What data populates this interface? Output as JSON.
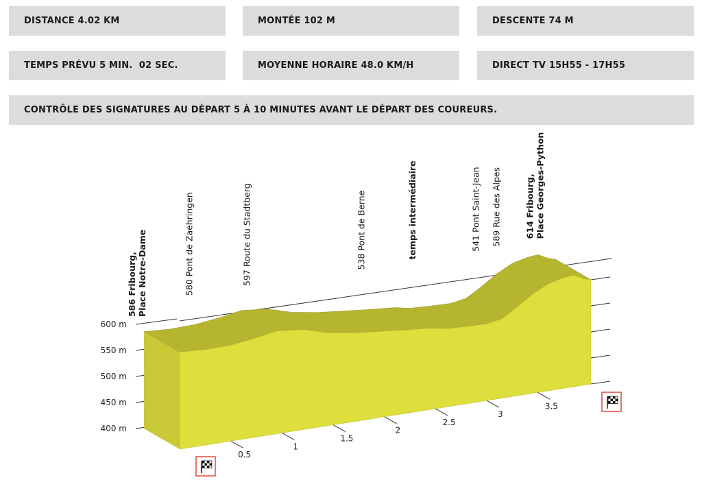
{
  "stats": {
    "distance": "DISTANCE 4.02 KM",
    "climb": "MONTÉE 102 M",
    "descent": "DESCENTE 74 M",
    "time": "TEMPS PRÉVU 5 MIN.  02 SEC.",
    "avg_speed": "MOYENNE HORAIRE 48.0 KM/H",
    "tv": "DIRECT TV 15H55 - 17H55",
    "note": "CONTRÔLE DES SIGNATURES AU DÉPART 5 À 10 MINUTES AVANT LE DÉPART DES COUREURS."
  },
  "colors": {
    "profile_top": "#b5b530",
    "profile_front": "#dede3c",
    "flag_border": "#e0493a",
    "box_bg": "#dcdcdc"
  },
  "chart_data": {
    "type": "area",
    "x_unit": "km",
    "y_unit": "m",
    "ylim": [
      400,
      600
    ],
    "y_ticks": [
      {
        "value": 400,
        "label": "400 m"
      },
      {
        "value": 450,
        "label": "450 m"
      },
      {
        "value": 500,
        "label": "500 m"
      },
      {
        "value": 550,
        "label": "550 m"
      },
      {
        "value": 600,
        "label": "600 m"
      }
    ],
    "x_ticks": [
      {
        "value": 0.5,
        "label": "0.5"
      },
      {
        "value": 1.0,
        "label": "1"
      },
      {
        "value": 1.5,
        "label": "1.5"
      },
      {
        "value": 2.0,
        "label": "2"
      },
      {
        "value": 2.5,
        "label": "2.5"
      },
      {
        "value": 3.0,
        "label": "3"
      },
      {
        "value": 3.5,
        "label": "3.5"
      }
    ],
    "total_distance": 4.02,
    "profile": {
      "x": [
        0,
        0.25,
        0.5,
        0.75,
        0.95,
        1.2,
        1.45,
        1.7,
        1.95,
        2.2,
        2.45,
        2.6,
        2.8,
        3.0,
        3.15,
        3.3,
        3.45,
        3.6,
        3.75,
        3.85,
        3.95,
        4.02
      ],
      "y": [
        586,
        583,
        584,
        590,
        597,
        592,
        578,
        570,
        565,
        560,
        556,
        550,
        548,
        547,
        552,
        570,
        590,
        605,
        612,
        614,
        604,
        600
      ]
    },
    "waypoints": [
      {
        "x": 0.0,
        "elevation": 586,
        "lines": [
          "586 Fribourg,",
          "Place Notre-Dame"
        ],
        "bold": true
      },
      {
        "x": 0.42,
        "elevation": 580,
        "lines": [
          "580 Pont de Zaehringen"
        ],
        "bold": false
      },
      {
        "x": 0.98,
        "elevation": 597,
        "lines": [
          "597 Route du Stadtberg"
        ],
        "bold": false
      },
      {
        "x": 2.1,
        "elevation": 538,
        "lines": [
          "538 Pont de Berne"
        ],
        "bold": false
      },
      {
        "x": 2.6,
        "elevation": null,
        "lines": [
          "temps intermédiaire"
        ],
        "bold": true
      },
      {
        "x": 3.22,
        "elevation": 541,
        "lines": [
          "541 Pont Saint-Jean"
        ],
        "bold": false
      },
      {
        "x": 3.42,
        "elevation": 589,
        "lines": [
          "589 Rue des Alpes"
        ],
        "bold": false
      },
      {
        "x": 3.85,
        "elevation": 614,
        "lines": [
          "614 Fribourg,",
          "Place Georges-Python"
        ],
        "bold": true
      }
    ]
  }
}
